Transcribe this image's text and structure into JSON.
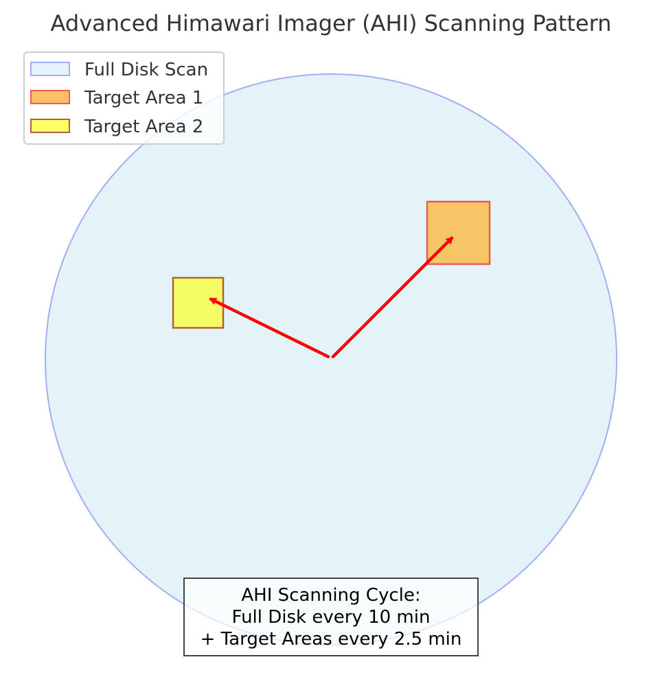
{
  "title": "Advanced Himawari Imager (AHI) Scanning Pattern",
  "legend": {
    "items": [
      {
        "label": "Full Disk Scan",
        "fill": "#e3f2fd",
        "stroke": "#a3adf7"
      },
      {
        "label": "Target Area 1",
        "fill": "#ffbf66",
        "stroke": "#f05a4e"
      },
      {
        "label": "Target Area 2",
        "fill": "#ffff66",
        "stroke": "#b0613c"
      }
    ]
  },
  "full_disk": {
    "label": "Full Disk Scan",
    "fill": "#e4f3f7",
    "stroke": "#a3adf7"
  },
  "target_areas": [
    {
      "label": "Target Area 1",
      "fill": "#f5c566",
      "stroke": "#f05a4e"
    },
    {
      "label": "Target Area 2",
      "fill": "#f5fd66",
      "stroke": "#b0613c"
    }
  ],
  "arrows": {
    "color": "#ff0000"
  },
  "note": {
    "lines": [
      "AHI Scanning Cycle:",
      "Full Disk every 10 min",
      "+ Target Areas every 2.5 min"
    ]
  }
}
